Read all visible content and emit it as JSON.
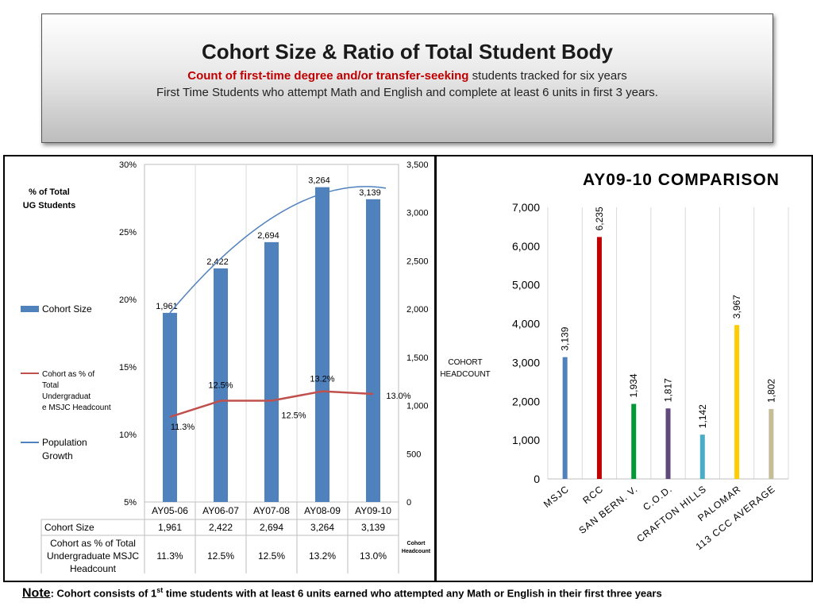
{
  "header": {
    "title": "Cohort Size & Ratio of Total Student Body",
    "subtitle_red": "Count of  first-time degree and/or transfer-seeking",
    "subtitle_rest": " students tracked for six years",
    "subtitle2": "First Time Students who attempt Math and English and complete at least 6 units in first 3 years."
  },
  "note": {
    "label": "Note",
    "text_before": " Cohort consists of 1",
    "superscript": "st",
    "text_after": " time students with at least 6 units earned who attempted any Math or English in their first three years"
  },
  "chart_data": [
    {
      "type": "bar",
      "title": "",
      "categories": [
        "AY05-06",
        "AY06-07",
        "AY07-08",
        "AY08-09",
        "AY09-10"
      ],
      "left_axis_title": "% of Total UG Students",
      "right_axis_title": "Cohort Headcount",
      "left_ticks": [
        "30%",
        "25%",
        "20%",
        "15%",
        "10%",
        "5%"
      ],
      "left_range": [
        5,
        30
      ],
      "right_ticks": [
        "3,500",
        "3,000",
        "2,500",
        "2,000",
        "1,500",
        "1,000",
        "500",
        "0"
      ],
      "right_range": [
        0,
        3500
      ],
      "bar_color": "#4f81bd",
      "pct_color": "#c0504d",
      "growth_color": "#4f81bd",
      "series": [
        {
          "name": "Cohort Size",
          "axis": "right",
          "values": [
            1961,
            2422,
            2694,
            3264,
            3139
          ],
          "labels": [
            "1,961",
            "2,422",
            "2,694",
            "3,264",
            "3,139"
          ]
        },
        {
          "name": "Cohort as % of Total Undergraduate MSJC Headcount",
          "axis": "left",
          "values": [
            11.3,
            12.5,
            12.5,
            13.2,
            13.0
          ],
          "labels": [
            "11.3%",
            "12.5%",
            "12.5%",
            "13.2%",
            "13.0%"
          ]
        },
        {
          "name": "Population Growth",
          "axis": "right",
          "trendline": true
        }
      ],
      "table": {
        "rows": [
          {
            "label": "Cohort Size",
            "cells": [
              "1,961",
              "2,422",
              "2,694",
              "3,264",
              "3,139"
            ]
          },
          {
            "label": "Cohort as % of Total Undergraduate MSJC Headcount",
            "cells": [
              "11.3%",
              "12.5%",
              "12.5%",
              "13.2%",
              "13.0%"
            ]
          }
        ]
      },
      "legend": [
        {
          "name": "Cohort Size",
          "marker": "bar"
        },
        {
          "name": "Cohort as % of Total Undergraduat e MSJC Headcount",
          "marker": "line-red"
        },
        {
          "name": "Population Growth",
          "marker": "line-blue"
        }
      ],
      "cohort_label_lines": [
        "COHORT",
        "HEADCOUNT"
      ],
      "cohort_small_lines": [
        "Cohort",
        "Headcount"
      ],
      "grid": true
    },
    {
      "type": "bar",
      "title": "AY09-10 COMPARISON",
      "categories": [
        "MSJC",
        "RCC",
        "SAN BERN. V.",
        "C.O.D.",
        "CRAFTON HILLS",
        "PALOMAR",
        "113 CCC AVERAGE"
      ],
      "values": [
        3139,
        6235,
        1934,
        1817,
        1142,
        3967,
        1802
      ],
      "labels": [
        "3,139",
        "6,235",
        "1,934",
        "1,817",
        "1,142",
        "3,967",
        "1,802"
      ],
      "colors": [
        "#4f81bd",
        "#c00000",
        "#009933",
        "#604a7b",
        "#4bacc6",
        "#ffcc00",
        "#c4bd97"
      ],
      "ylim": [
        0,
        7000
      ],
      "y_ticks": [
        "7,000",
        "6,000",
        "5,000",
        "4,000",
        "3,000",
        "2,000",
        "1,000",
        "0"
      ],
      "grid": true
    }
  ]
}
